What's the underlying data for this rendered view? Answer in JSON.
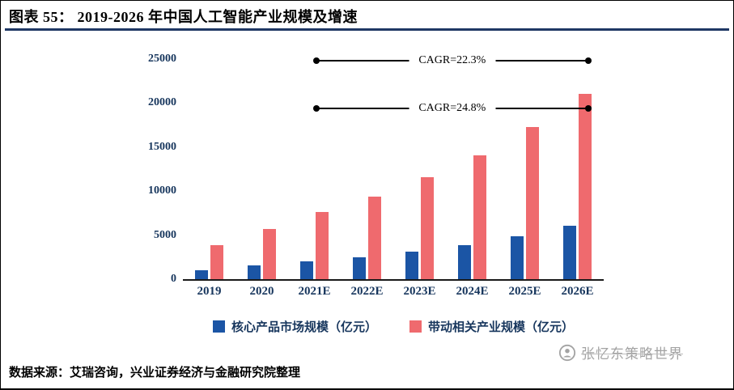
{
  "page": {
    "title": "图表 55： 2019-2026 年中国人工智能产业规模及增速",
    "source": "数据来源：艾瑞咨询，兴业证券经济与金融研究院整理",
    "watermark": "张忆东策略世界",
    "accent_color": "#1F3864",
    "axis_label_color": "#17365D"
  },
  "chart_data": {
    "type": "bar",
    "title": "2019-2026 年中国人工智能产业规模及增速",
    "categories": [
      "2019",
      "2020",
      "2021E",
      "2022E",
      "2023E",
      "2024E",
      "2025E",
      "2026E"
    ],
    "series": [
      {
        "name": "核心产品市场规模（亿元）",
        "color": "#1B55A5",
        "values": [
          1050,
          1550,
          2000,
          2500,
          3150,
          3900,
          4900,
          6050
        ]
      },
      {
        "name": "带动相关产业规模（亿元）",
        "color": "#EF6A6E",
        "values": [
          3850,
          5700,
          7650,
          9400,
          11600,
          14050,
          17300,
          21050
        ]
      }
    ],
    "xlabel": "",
    "ylabel": "",
    "ylim": [
      0,
      25000
    ],
    "yticks": [
      0,
      5000,
      10000,
      15000,
      20000,
      25000
    ],
    "grid": false,
    "legend_position": "bottom",
    "annotations": [
      {
        "label": "CAGR=22.3%",
        "value": 24700,
        "from_category": "2021E",
        "to_category": "2026E"
      },
      {
        "label": "CAGR=24.8%",
        "value": 19300,
        "from_category": "2021E",
        "to_category": "2026E"
      }
    ]
  }
}
